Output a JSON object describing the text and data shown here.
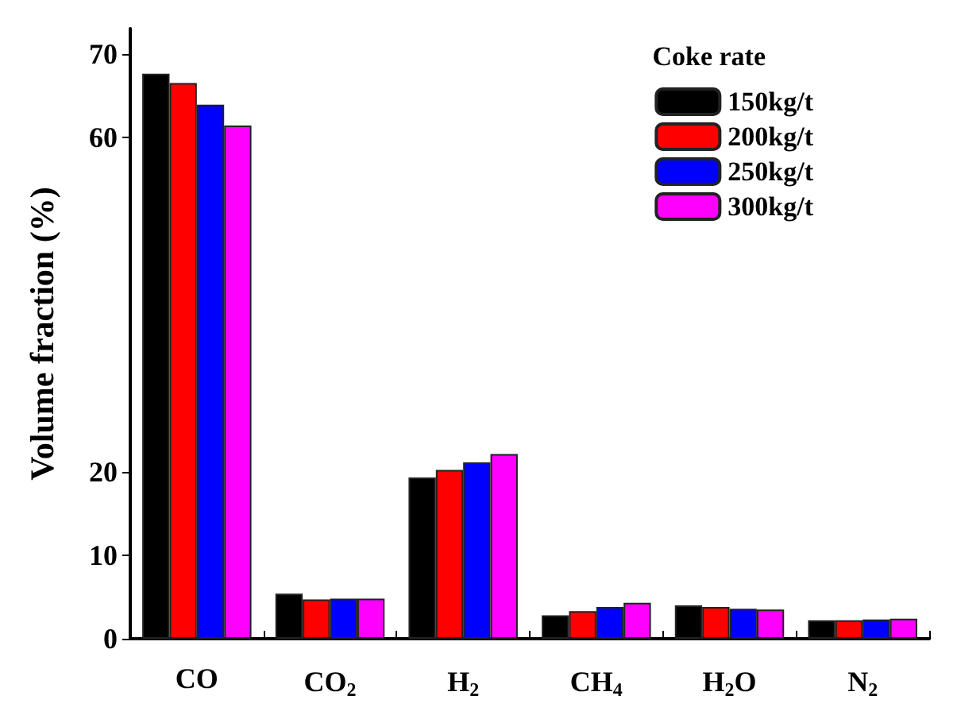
{
  "chart_data": {
    "type": "bar",
    "categories": [
      "CO",
      "CO$_{2}$",
      "H$_{2}$",
      "CH$_{4}$",
      "H$_{2}$O",
      "N$_{2}$"
    ],
    "ylabel": "Volume fraction (%)",
    "legend_title": "Coke rate",
    "legend": "top right",
    "series": [
      {
        "name": "150kg/t",
        "color": "#000000",
        "values": [
          67.6,
          5.4,
          19.3,
          2.8,
          4.0,
          2.2
        ]
      },
      {
        "name": "200kg/t",
        "color": "#ff0000",
        "values": [
          66.5,
          4.7,
          20.2,
          3.3,
          3.8,
          2.2
        ]
      },
      {
        "name": "250kg/t",
        "color": "#0000ff",
        "values": [
          63.9,
          4.8,
          21.1,
          3.8,
          3.6,
          2.3
        ]
      },
      {
        "name": "300kg/t",
        "color": "#ff00ff",
        "values": [
          61.4,
          4.8,
          22.1,
          4.3,
          3.5,
          2.4
        ]
      }
    ],
    "ylim": [
      0,
      73
    ],
    "yticks": [
      0,
      10,
      20,
      60,
      70
    ]
  }
}
